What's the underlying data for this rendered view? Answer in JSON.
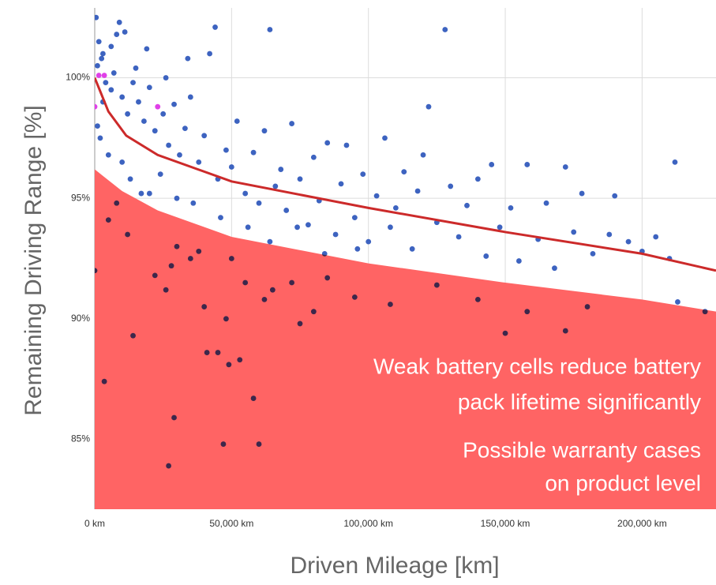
{
  "chart_data": {
    "type": "scatter",
    "x_label": "Driven Mileage [km]",
    "y_label": "Remaining Driving Range [%]",
    "annotations": [
      [
        "Weak battery cells reduce battery",
        "pack lifetime significantly"
      ],
      [
        "Possible warranty cases",
        "on product level"
      ]
    ],
    "xlim": [
      0,
      227000
    ],
    "ylim": [
      82.1,
      102.9
    ],
    "xticks": [
      {
        "value": 0,
        "label": "0 km"
      },
      {
        "value": 50000,
        "label": "50,000 km"
      },
      {
        "value": 100000,
        "label": "100,000 km"
      },
      {
        "value": 150000,
        "label": "150,000 km"
      },
      {
        "value": 200000,
        "label": "200,000 km"
      }
    ],
    "yticks": [
      {
        "value": 85,
        "label": "85%"
      },
      {
        "value": 90,
        "label": "90%"
      },
      {
        "value": 95,
        "label": "95%"
      },
      {
        "value": 100,
        "label": "100%"
      }
    ],
    "grid": true,
    "series": [
      {
        "type": "area",
        "color": "#ff6464",
        "x": [
          0,
          10000,
          23000,
          50000,
          100000,
          150000,
          200000,
          227000
        ],
        "values": [
          96.2,
          95.3,
          94.5,
          93.4,
          92.3,
          91.5,
          90.8,
          90.3
        ]
      },
      {
        "type": "scatter",
        "color": "#3d63c0",
        "x": [
          500,
          1500,
          3000,
          1000,
          2500,
          4000,
          6000,
          8000,
          9000,
          11000,
          7000,
          10000,
          12000,
          14000,
          16000,
          18000,
          20000,
          22000,
          25000,
          27000,
          29000,
          31000,
          33000,
          35000,
          38000,
          40000,
          42000,
          44000,
          45000,
          48000,
          50000,
          52000,
          55000,
          58000,
          60000,
          62000,
          64000,
          66000,
          68000,
          70000,
          72000,
          75000,
          78000,
          80000,
          82000,
          85000,
          88000,
          90000,
          92000,
          95000,
          98000,
          100000,
          103000,
          106000,
          108000,
          110000,
          113000,
          116000,
          118000,
          120000,
          122000,
          125000,
          128000,
          130000,
          133000,
          136000,
          140000,
          143000,
          145000,
          148000,
          152000,
          155000,
          158000,
          162000,
          165000,
          168000,
          172000,
          175000,
          178000,
          182000,
          188000,
          190000,
          195000,
          200000,
          205000,
          210000,
          212000,
          213000,
          223000,
          2000,
          5000,
          13000,
          17000,
          24000,
          30000,
          36000,
          46000,
          56000,
          64000,
          74000,
          84000,
          96000,
          1000,
          3000,
          6000,
          15000,
          19000,
          26000,
          34000,
          10000,
          0,
          3500,
          14000,
          20000,
          28000,
          29000,
          27000,
          30000,
          35000,
          40000,
          41000,
          45000,
          47000,
          48000,
          49000,
          53000,
          55000,
          58000,
          60000,
          65000,
          72000,
          80000,
          85000,
          95000,
          108000,
          125000,
          140000,
          150000,
          158000,
          172000,
          180000,
          5000,
          8000,
          12000,
          22000,
          26000,
          38000,
          50000,
          62000,
          75000
        ],
        "values": [
          102.5,
          101.5,
          101,
          100.5,
          100.8,
          99.8,
          99.5,
          101.8,
          102.3,
          101.9,
          100.2,
          99.2,
          98.5,
          99.8,
          99,
          98.2,
          99.6,
          97.8,
          98.5,
          97.2,
          98.9,
          96.8,
          97.9,
          99.2,
          96.5,
          97.6,
          101,
          102.1,
          95.8,
          97,
          96.3,
          98.2,
          95.2,
          96.9,
          94.8,
          97.8,
          102,
          95.5,
          96.2,
          94.5,
          98.1,
          95.8,
          93.9,
          96.7,
          94.9,
          97.3,
          93.5,
          95.6,
          97.2,
          94.2,
          96,
          93.2,
          95.1,
          97.5,
          93.8,
          94.6,
          96.1,
          92.9,
          95.3,
          96.8,
          98.8,
          94,
          102,
          95.5,
          93.4,
          94.7,
          95.8,
          92.6,
          96.4,
          93.8,
          94.6,
          92.4,
          96.4,
          93.3,
          94.8,
          92.1,
          96.3,
          93.6,
          95.2,
          92.7,
          93.5,
          95.1,
          93.2,
          92.8,
          93.4,
          92.5,
          96.5,
          90.7,
          90.3,
          97.5,
          96.8,
          95.8,
          95.2,
          96,
          95,
          94.8,
          94.2,
          93.8,
          93.2,
          93.8,
          92.7,
          92.9,
          98,
          99,
          101.3,
          100.4,
          101.2,
          100,
          100.8,
          96.5,
          92,
          87.4,
          89.3,
          95.2,
          92.2,
          85.9,
          83.9,
          93,
          92.5,
          90.5,
          88.6,
          88.6,
          84.8,
          90,
          88.1,
          88.3,
          91.5,
          86.7,
          84.8,
          91.2,
          91.5,
          90.3,
          91.7,
          90.9,
          90.6,
          91.4,
          90.8,
          89.4,
          90.3,
          89.5,
          90.5,
          94.1,
          94.8,
          93.5,
          91.8,
          91.2,
          92.8,
          92.5,
          90.8,
          89.8
        ]
      },
      {
        "type": "scatter",
        "color": "#e040e8",
        "x": [
          1500,
          3500,
          0,
          23000
        ],
        "values": [
          100.1,
          100.1,
          98.8,
          98.8
        ]
      },
      {
        "type": "line",
        "color": "#cc2a2a",
        "x": [
          0,
          5000,
          11500,
          23000,
          50000,
          100000,
          150000,
          200000,
          227000
        ],
        "values": [
          100,
          98.6,
          97.6,
          96.8,
          95.7,
          94.6,
          93.6,
          92.7,
          92.0
        ]
      }
    ]
  }
}
